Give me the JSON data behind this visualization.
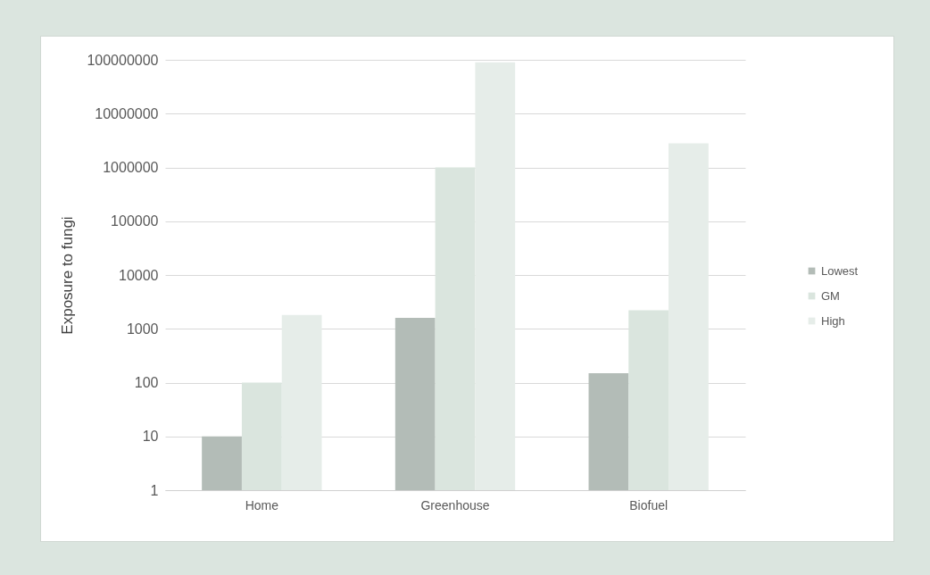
{
  "chart_data": {
    "type": "bar",
    "ylabel": "Exposure to fungi",
    "categories": [
      "Home",
      "Greenhouse",
      "Biofuel"
    ],
    "series": [
      {
        "name": "Lowest",
        "color": "#b3bcb7",
        "values": [
          10,
          1600,
          150
        ]
      },
      {
        "name": "GM",
        "color": "#dae5de",
        "values": [
          100,
          1000000,
          2200
        ]
      },
      {
        "name": "High",
        "color": "#e6ede9",
        "values": [
          1800,
          90000000,
          2800000
        ]
      }
    ],
    "log": true,
    "ylim": [
      1,
      100000000
    ],
    "yticks": [
      1,
      10,
      100,
      1000,
      10000,
      100000,
      1000000,
      10000000,
      100000000
    ],
    "grid": "y",
    "legend": "right"
  }
}
